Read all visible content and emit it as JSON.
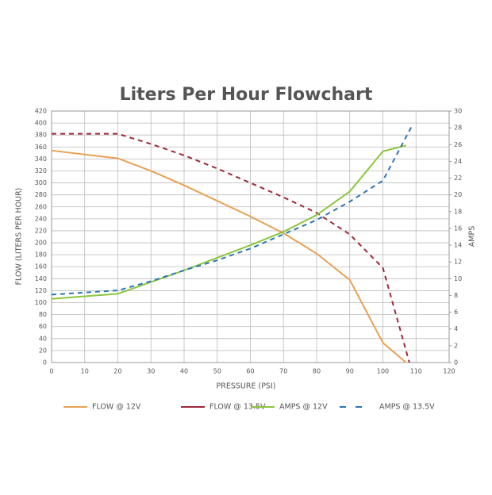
{
  "chart_data": {
    "type": "line",
    "title": "Liters Per Hour Flowchart",
    "x_label": "PRESSURE (PSI)",
    "y_label": "FLOW (LITERS PER HOUR)",
    "y2_label": "AMPS",
    "xlim": [
      0,
      120
    ],
    "xticks": [
      0,
      10,
      20,
      30,
      40,
      50,
      60,
      70,
      80,
      90,
      100,
      110,
      120
    ],
    "ylim": [
      0,
      420
    ],
    "yticks": [
      0,
      20,
      40,
      60,
      80,
      100,
      120,
      140,
      160,
      180,
      200,
      220,
      240,
      260,
      280,
      300,
      320,
      340,
      360,
      380,
      400,
      420
    ],
    "y2lim": [
      0,
      30
    ],
    "y2ticks": [
      0,
      2,
      4,
      6,
      8,
      10,
      12,
      14,
      16,
      18,
      20,
      22,
      24,
      26,
      28,
      30
    ],
    "grid": true,
    "legend": "bottom",
    "series": [
      {
        "name": "FLOW @ 12V",
        "color": "#e9a054",
        "dashed": false,
        "x": [
          0,
          20,
          30,
          40,
          50,
          60,
          70,
          80,
          90,
          100,
          107
        ],
        "values": [
          354,
          341,
          320,
          296,
          270,
          244,
          216,
          182,
          138,
          33,
          0
        ]
      },
      {
        "name": "FLOW @ 13.5V",
        "color": "#9e2a3a",
        "dashed": true,
        "x": [
          0,
          20,
          30,
          40,
          50,
          60,
          70,
          80,
          90,
          100,
          108
        ],
        "values": [
          382,
          382,
          365,
          346,
          324,
          300,
          276,
          250,
          214,
          158,
          0
        ]
      },
      {
        "name": "AMPS @ 12V",
        "color": "#8cc63f",
        "dashed": false,
        "axis": "y2",
        "x": [
          0,
          20,
          30,
          40,
          50,
          60,
          70,
          80,
          90,
          100,
          107
        ],
        "values": [
          7.6,
          8.2,
          9.6,
          11.0,
          12.5,
          14.0,
          15.6,
          17.6,
          20.4,
          25.2,
          25.9
        ]
      },
      {
        "name": "AMPS @ 13.5V",
        "color": "#2e75b6",
        "dashed": true,
        "axis": "y2",
        "x": [
          0,
          20,
          30,
          40,
          50,
          60,
          70,
          80,
          90,
          100,
          109
        ],
        "values": [
          8.1,
          8.6,
          9.7,
          11.0,
          12.2,
          13.6,
          15.3,
          17.0,
          19.2,
          21.7,
          28.4
        ]
      }
    ]
  }
}
